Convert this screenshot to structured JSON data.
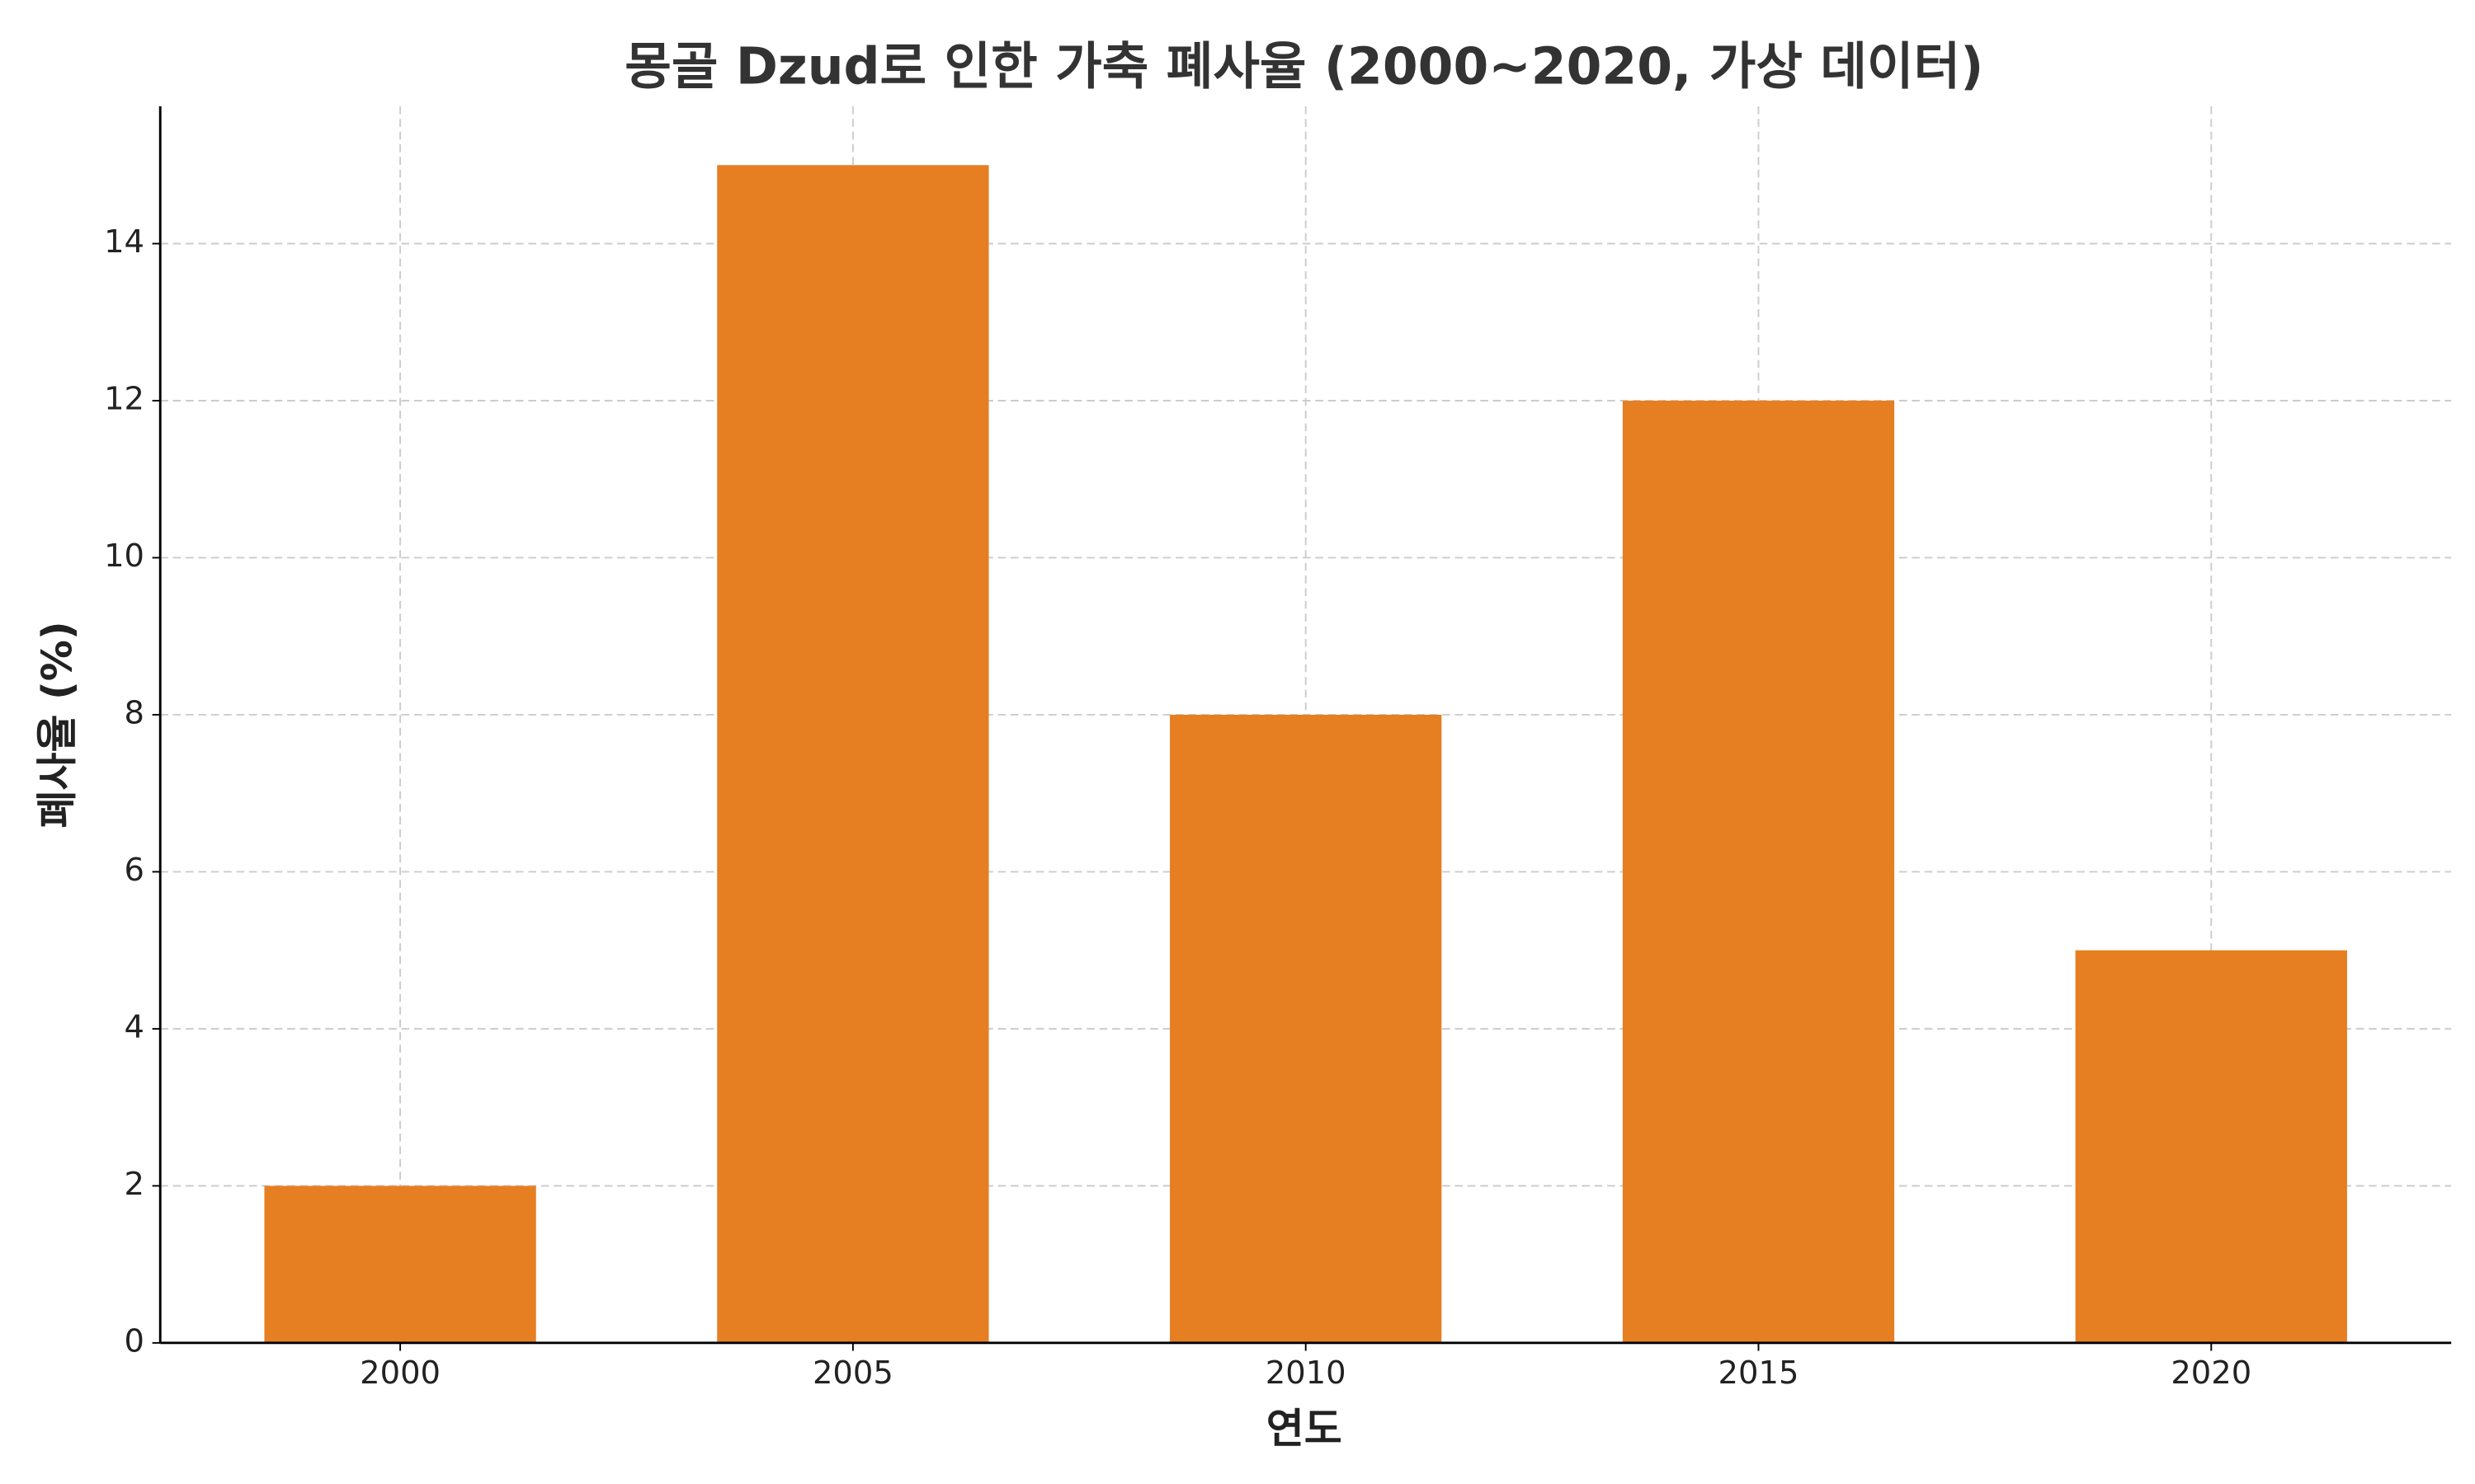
{
  "chart_data": {
    "type": "bar",
    "title": "몽골 Dzud로 인한 가축 폐사율 (2000~2020, 가상 데이터)",
    "x_label": "연도",
    "y_label": "폐사율 (%)",
    "categories": [
      "2000",
      "2005",
      "2010",
      "2015",
      "2020"
    ],
    "values": [
      2,
      15,
      8,
      12,
      5
    ],
    "color": "#e67e22",
    "ylim": [
      0,
      15.75
    ],
    "yticks": [
      0,
      2,
      4,
      6,
      8,
      10,
      12,
      14
    ],
    "grid": true
  }
}
